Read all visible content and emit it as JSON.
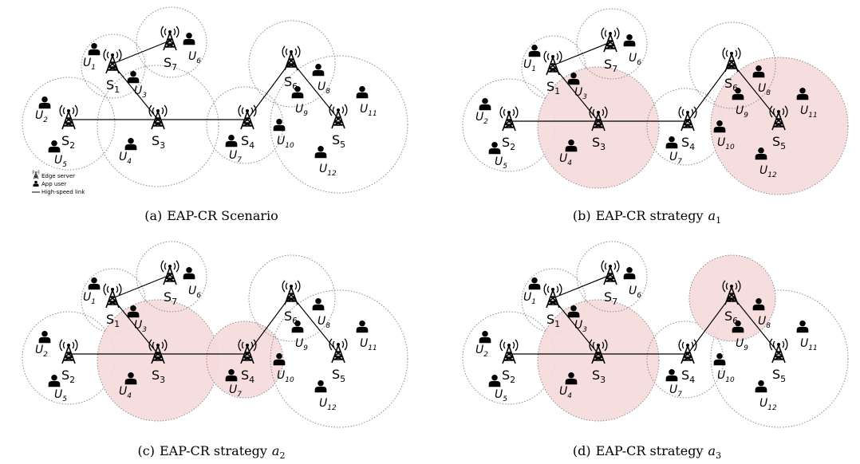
{
  "legend": {
    "server": "Edge server",
    "user": "App user",
    "link": "High-speed link"
  },
  "servers": [
    {
      "id": "1",
      "name": "S",
      "sub": "1"
    },
    {
      "id": "2",
      "name": "S",
      "sub": "2"
    },
    {
      "id": "3",
      "name": "S",
      "sub": "3"
    },
    {
      "id": "4",
      "name": "S",
      "sub": "4"
    },
    {
      "id": "5",
      "name": "S",
      "sub": "5"
    },
    {
      "id": "6",
      "name": "S",
      "sub": "6"
    },
    {
      "id": "7",
      "name": "S",
      "sub": "7"
    }
  ],
  "users": [
    {
      "id": "1",
      "name": "U",
      "sub": "1"
    },
    {
      "id": "2",
      "name": "U",
      "sub": "2"
    },
    {
      "id": "3",
      "name": "U",
      "sub": "3"
    },
    {
      "id": "4",
      "name": "U",
      "sub": "4"
    },
    {
      "id": "5",
      "name": "U",
      "sub": "5"
    },
    {
      "id": "6",
      "name": "U",
      "sub": "6"
    },
    {
      "id": "7",
      "name": "U",
      "sub": "7"
    },
    {
      "id": "8",
      "name": "U",
      "sub": "8"
    },
    {
      "id": "9",
      "name": "U",
      "sub": "9"
    },
    {
      "id": "10",
      "name": "U",
      "sub": "10"
    },
    {
      "id": "11",
      "name": "U",
      "sub": "11"
    },
    {
      "id": "12",
      "name": "U",
      "sub": "12"
    }
  ],
  "links": [
    [
      "1",
      "7"
    ],
    [
      "1",
      "3"
    ],
    [
      "2",
      "3"
    ],
    [
      "3",
      "4"
    ],
    [
      "4",
      "6"
    ],
    [
      "6",
      "5"
    ]
  ],
  "highlight_color": "#f6dada",
  "panels": [
    {
      "id": "a",
      "label": "(a)",
      "title": "EAP-CR Scenario",
      "var": "",
      "sub": "",
      "show_legend": true,
      "highlighted": []
    },
    {
      "id": "b",
      "label": "(b)",
      "title": "EAP-CR strategy",
      "var": "a",
      "sub": "1",
      "show_legend": false,
      "highlighted": [
        "3",
        "5"
      ]
    },
    {
      "id": "c",
      "label": "(c)",
      "title": "EAP-CR strategy",
      "var": "a",
      "sub": "2",
      "show_legend": false,
      "highlighted": [
        "3",
        "4"
      ]
    },
    {
      "id": "d",
      "label": "(d)",
      "title": "EAP-CR strategy",
      "var": "a",
      "sub": "3",
      "show_legend": false,
      "highlighted": [
        "3",
        "6"
      ]
    }
  ]
}
